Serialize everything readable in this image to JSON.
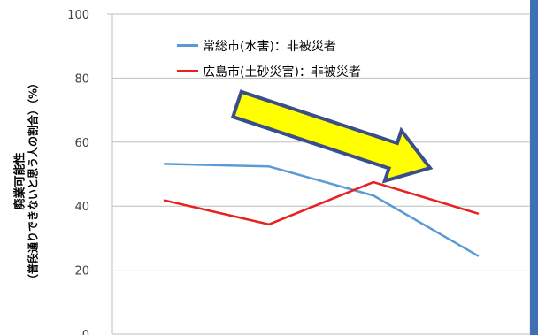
{
  "chart_data": {
    "type": "line",
    "ylabel_line1": "廃業可能性",
    "ylabel_line2": "（普段通りできないと思う人の割合）（%）",
    "ylim": [
      0,
      100
    ],
    "y_ticks": [
      "100",
      "80",
      "60",
      "40",
      "20",
      "0"
    ],
    "grid": "horizontal",
    "legend_position": "top-left",
    "x": [
      1,
      2,
      3,
      4
    ],
    "series": [
      {
        "name": "常総市(水害)：非被災者",
        "color": "#5b9bd5",
        "values": [
          53.2,
          52.4,
          43.3,
          24.5
        ]
      },
      {
        "name": "広島市(土砂災害)：非被災者",
        "color": "#e8201f",
        "values": [
          41.8,
          34.3,
          47.5,
          37.7
        ]
      }
    ],
    "annotation": {
      "shape": "arrow",
      "direction": "down-right",
      "fill": "#ffff00",
      "stroke": "#3a4f8a"
    }
  }
}
